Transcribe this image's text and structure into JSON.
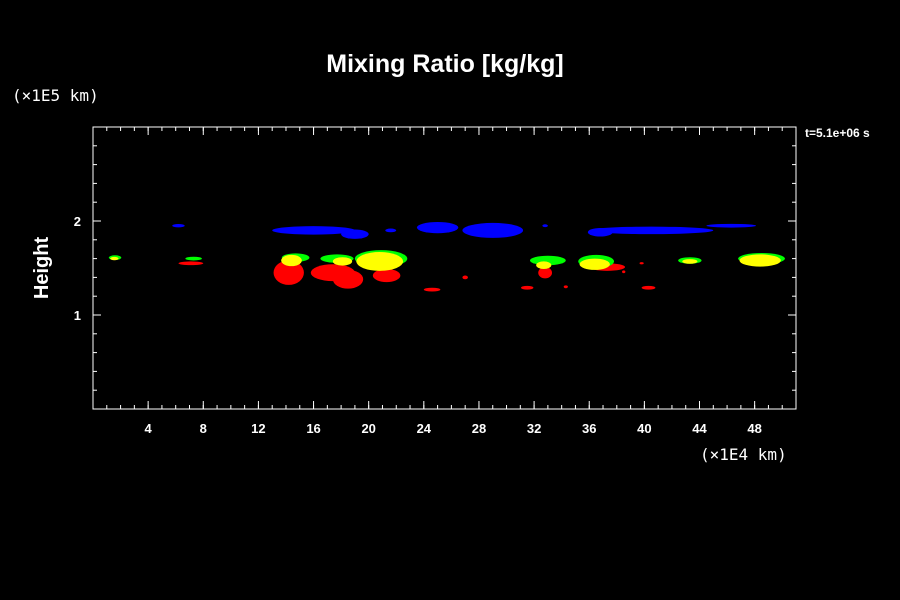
{
  "chart_data": {
    "type": "contour",
    "title": "Mixing Ratio [kg/kg]",
    "ylabel": "Height",
    "xlabel": "",
    "x_unit": "(×1E4 km)",
    "y_unit": "(×1E5 km)",
    "timestamp": "t=5.1e+06 s",
    "xlim": [
      0,
      51
    ],
    "ylim": [
      0,
      3
    ],
    "x_ticks": [
      4,
      8,
      12,
      16,
      20,
      24,
      28,
      32,
      36,
      40,
      44,
      48
    ],
    "x_tick_labels": [
      "4",
      "8",
      "12",
      "16",
      "20",
      "24",
      "28",
      "32",
      "36",
      "40",
      "44",
      "48"
    ],
    "y_ticks": [
      1,
      2
    ],
    "y_tick_labels": [
      "1",
      "2"
    ],
    "x_minor_step": 1,
    "y_minor_step": 0.2,
    "grid": false,
    "level_colors": {
      "blue": "#0000ff",
      "red": "#ff0000",
      "yellow": "#ffff00",
      "green": "#00ff00"
    },
    "blobs": [
      {
        "color": "green",
        "cx": 1.6,
        "cy": 1.61,
        "rx": 0.45,
        "ry": 0.025
      },
      {
        "color": "yellow",
        "cx": 1.55,
        "cy": 1.6,
        "rx": 0.3,
        "ry": 0.018
      },
      {
        "color": "blue",
        "cx": 6.2,
        "cy": 1.95,
        "rx": 0.45,
        "ry": 0.018
      },
      {
        "color": "red",
        "cx": 7.1,
        "cy": 1.55,
        "rx": 0.9,
        "ry": 0.02
      },
      {
        "color": "green",
        "cx": 7.3,
        "cy": 1.6,
        "rx": 0.6,
        "ry": 0.02
      },
      {
        "color": "blue",
        "cx": 16.0,
        "cy": 1.9,
        "rx": 3.0,
        "ry": 0.045
      },
      {
        "color": "blue",
        "cx": 19.0,
        "cy": 1.86,
        "rx": 1.0,
        "ry": 0.05
      },
      {
        "color": "blue",
        "cx": 21.6,
        "cy": 1.9,
        "rx": 0.4,
        "ry": 0.02
      },
      {
        "color": "blue",
        "cx": 25.0,
        "cy": 1.93,
        "rx": 1.5,
        "ry": 0.06
      },
      {
        "color": "blue",
        "cx": 29.0,
        "cy": 1.9,
        "rx": 2.2,
        "ry": 0.08
      },
      {
        "color": "blue",
        "cx": 32.8,
        "cy": 1.95,
        "rx": 0.2,
        "ry": 0.015
      },
      {
        "color": "blue",
        "cx": 40.5,
        "cy": 1.9,
        "rx": 4.5,
        "ry": 0.04
      },
      {
        "color": "blue",
        "cx": 36.8,
        "cy": 1.88,
        "rx": 0.9,
        "ry": 0.045
      },
      {
        "color": "blue",
        "cx": 46.3,
        "cy": 1.95,
        "rx": 1.8,
        "ry": 0.02
      },
      {
        "color": "red",
        "cx": 14.2,
        "cy": 1.45,
        "rx": 1.1,
        "ry": 0.13
      },
      {
        "color": "green",
        "cx": 14.7,
        "cy": 1.61,
        "rx": 1.0,
        "ry": 0.045
      },
      {
        "color": "yellow",
        "cx": 14.4,
        "cy": 1.58,
        "rx": 0.75,
        "ry": 0.06
      },
      {
        "color": "red",
        "cx": 17.4,
        "cy": 1.45,
        "rx": 1.6,
        "ry": 0.09
      },
      {
        "color": "red",
        "cx": 18.5,
        "cy": 1.38,
        "rx": 1.1,
        "ry": 0.1
      },
      {
        "color": "green",
        "cx": 17.7,
        "cy": 1.6,
        "rx": 1.2,
        "ry": 0.045
      },
      {
        "color": "yellow",
        "cx": 18.1,
        "cy": 1.57,
        "rx": 0.7,
        "ry": 0.045
      },
      {
        "color": "red",
        "cx": 21.3,
        "cy": 1.42,
        "rx": 1.0,
        "ry": 0.07
      },
      {
        "color": "green",
        "cx": 20.9,
        "cy": 1.6,
        "rx": 1.9,
        "ry": 0.09
      },
      {
        "color": "yellow",
        "cx": 20.8,
        "cy": 1.57,
        "rx": 1.7,
        "ry": 0.1
      },
      {
        "color": "red",
        "cx": 24.6,
        "cy": 1.27,
        "rx": 0.6,
        "ry": 0.02
      },
      {
        "color": "red",
        "cx": 27.0,
        "cy": 1.4,
        "rx": 0.2,
        "ry": 0.02
      },
      {
        "color": "red",
        "cx": 31.5,
        "cy": 1.29,
        "rx": 0.45,
        "ry": 0.02
      },
      {
        "color": "red",
        "cx": 32.8,
        "cy": 1.45,
        "rx": 0.5,
        "ry": 0.06
      },
      {
        "color": "green",
        "cx": 33.0,
        "cy": 1.58,
        "rx": 1.3,
        "ry": 0.05
      },
      {
        "color": "yellow",
        "cx": 32.7,
        "cy": 1.53,
        "rx": 0.55,
        "ry": 0.04
      },
      {
        "color": "red",
        "cx": 34.3,
        "cy": 1.3,
        "rx": 0.15,
        "ry": 0.015
      },
      {
        "color": "red",
        "cx": 37.3,
        "cy": 1.51,
        "rx": 1.3,
        "ry": 0.04
      },
      {
        "color": "green",
        "cx": 36.5,
        "cy": 1.57,
        "rx": 1.3,
        "ry": 0.07
      },
      {
        "color": "yellow",
        "cx": 36.4,
        "cy": 1.54,
        "rx": 1.1,
        "ry": 0.06
      },
      {
        "color": "red",
        "cx": 38.5,
        "cy": 1.46,
        "rx": 0.12,
        "ry": 0.015
      },
      {
        "color": "red",
        "cx": 39.8,
        "cy": 1.55,
        "rx": 0.15,
        "ry": 0.012
      },
      {
        "color": "red",
        "cx": 40.3,
        "cy": 1.29,
        "rx": 0.5,
        "ry": 0.02
      },
      {
        "color": "green",
        "cx": 43.3,
        "cy": 1.58,
        "rx": 0.85,
        "ry": 0.035
      },
      {
        "color": "yellow",
        "cx": 43.3,
        "cy": 1.57,
        "rx": 0.55,
        "ry": 0.025
      },
      {
        "color": "green",
        "cx": 48.5,
        "cy": 1.6,
        "rx": 1.7,
        "ry": 0.06
      },
      {
        "color": "yellow",
        "cx": 48.4,
        "cy": 1.58,
        "rx": 1.5,
        "ry": 0.065
      }
    ]
  }
}
